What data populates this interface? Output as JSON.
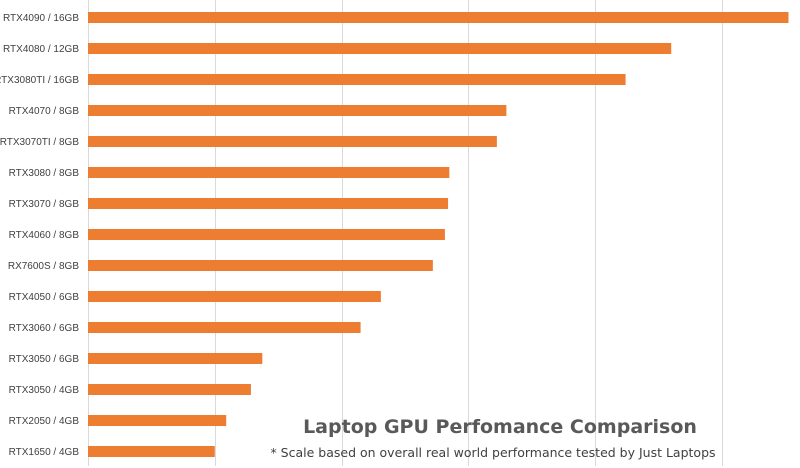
{
  "chart_data": {
    "type": "bar",
    "orientation": "horizontal",
    "title": "Laptop GPU Perfomance Comparison",
    "subtitle": "* Scale based on overall real world performance tested by Just Laptops",
    "categories": [
      "RTX4090 / 16GB",
      "RTX4080 / 12GB",
      "RTX3080TI / 16GB",
      "RTX4070 / 8GB",
      "RTX3070TI / 8GB",
      "RTX3080 / 8GB",
      "RTX3070 / 8GB",
      "RTX4060 / 8GB",
      "RX7600S / 8GB",
      "RTX4050 / 6GB",
      "RTX3060 / 6GB",
      "RTX3050 / 6GB",
      "RTX3050 / 4GB",
      "RTX2050 / 4GB",
      "RTX1650 / 4GB"
    ],
    "values": [
      110.5,
      92.0,
      84.8,
      66.0,
      64.5,
      57.0,
      56.8,
      56.3,
      54.4,
      46.2,
      43.0,
      27.5,
      25.7,
      21.8,
      20.0
    ],
    "xlim": [
      0,
      112
    ],
    "grid": true,
    "colors": {
      "bar": "#ed7d31",
      "grid": "#d9d9d9"
    }
  }
}
